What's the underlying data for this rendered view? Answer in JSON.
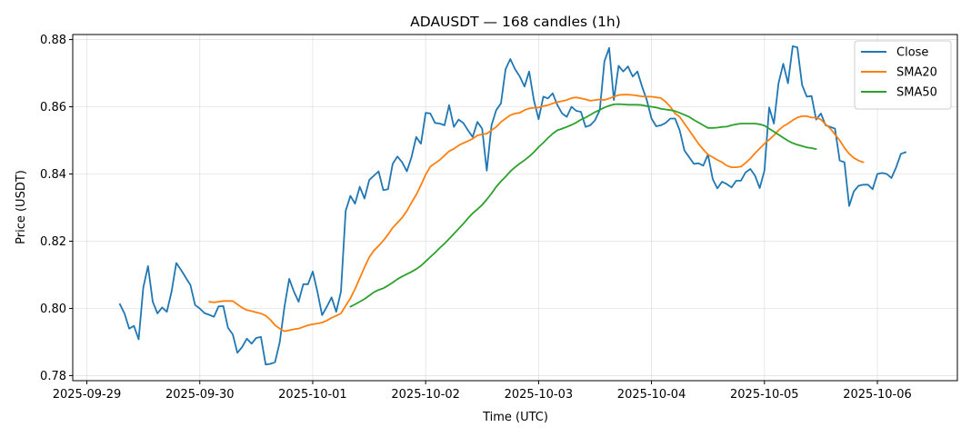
{
  "chart_data": {
    "type": "line",
    "title": "ADAUSDT — 168 candles (1h)",
    "xlabel": "Time (UTC)",
    "ylabel": "Price (USDT)",
    "x_start": "2025-09-29 07:00",
    "x_step": "1h",
    "xlim": [
      "2025-09-28 21:00",
      "2025-10-06 17:00"
    ],
    "ylim": [
      0.7785,
      0.8815
    ],
    "x_ticks": [
      "2025-09-29",
      "2025-09-30",
      "2025-10-01",
      "2025-10-02",
      "2025-10-03",
      "2025-10-04",
      "2025-10-05",
      "2025-10-06"
    ],
    "y_ticks": [
      "0.78",
      "0.80",
      "0.82",
      "0.84",
      "0.86",
      "0.88"
    ],
    "grid": true,
    "legend_position": "top-right",
    "series": [
      {
        "name": "Close",
        "color": "#1f77b4",
        "values": [
          0.8013,
          0.7985,
          0.794,
          0.7948,
          0.7908,
          0.8062,
          0.8126,
          0.802,
          0.7985,
          0.8003,
          0.799,
          0.805,
          0.8135,
          0.8115,
          0.8092,
          0.807,
          0.801,
          0.8,
          0.7986,
          0.7981,
          0.7975,
          0.8006,
          0.8007,
          0.7942,
          0.7923,
          0.7868,
          0.7885,
          0.791,
          0.7895,
          0.7912,
          0.7915,
          0.7833,
          0.7835,
          0.784,
          0.79,
          0.8005,
          0.8088,
          0.805,
          0.802,
          0.8072,
          0.8072,
          0.811,
          0.805,
          0.798,
          0.8005,
          0.8033,
          0.799,
          0.805,
          0.829,
          0.8335,
          0.8312,
          0.8362,
          0.8327,
          0.8382,
          0.8395,
          0.8408,
          0.8352,
          0.8355,
          0.843,
          0.8452,
          0.8435,
          0.8408,
          0.845,
          0.851,
          0.849,
          0.8582,
          0.858,
          0.8552,
          0.855,
          0.8545,
          0.8605,
          0.854,
          0.8562,
          0.8552,
          0.853,
          0.851,
          0.8555,
          0.8535,
          0.841,
          0.8545,
          0.859,
          0.861,
          0.8712,
          0.8742,
          0.8712,
          0.869,
          0.866,
          0.8705,
          0.862,
          0.8563,
          0.863,
          0.8625,
          0.864,
          0.8605,
          0.858,
          0.857,
          0.86,
          0.8588,
          0.8585,
          0.854,
          0.8545,
          0.856,
          0.859,
          0.8735,
          0.8775,
          0.862,
          0.8722,
          0.8705,
          0.872,
          0.869,
          0.8705,
          0.866,
          0.862,
          0.8565,
          0.8542,
          0.8545,
          0.8552,
          0.8565,
          0.8565,
          0.853,
          0.847,
          0.845,
          0.843,
          0.8432,
          0.8425,
          0.8458,
          0.8385,
          0.8357,
          0.8377,
          0.837,
          0.836,
          0.838,
          0.838,
          0.8405,
          0.8415,
          0.8395,
          0.8358,
          0.841,
          0.8598,
          0.855,
          0.867,
          0.8728,
          0.867,
          0.878,
          0.8777,
          0.8665,
          0.863,
          0.8632,
          0.8562,
          0.858,
          0.8545,
          0.854,
          0.8535,
          0.844,
          0.8435,
          0.8305,
          0.8348,
          0.8365,
          0.8368,
          0.8368,
          0.8355,
          0.84,
          0.8403,
          0.84,
          0.8388,
          0.842,
          0.846,
          0.8465
        ]
      },
      {
        "name": "SMA20",
        "color": "#ff7f0e",
        "start_index": 19,
        "values": [
          0.802,
          0.8018,
          0.802,
          0.8022,
          0.8022,
          0.8022,
          0.8012,
          0.8002,
          0.7995,
          0.7992,
          0.7988,
          0.7985,
          0.7978,
          0.7966,
          0.795,
          0.794,
          0.7932,
          0.7935,
          0.7938,
          0.794,
          0.7945,
          0.795,
          0.7953,
          0.7955,
          0.7958,
          0.7964,
          0.7972,
          0.7978,
          0.7985,
          0.8008,
          0.803,
          0.8058,
          0.809,
          0.8122,
          0.8152,
          0.8172,
          0.8186,
          0.8202,
          0.822,
          0.824,
          0.8255,
          0.827,
          0.829,
          0.8315,
          0.8338,
          0.8367,
          0.8398,
          0.8422,
          0.8432,
          0.8442,
          0.8455,
          0.8468,
          0.8475,
          0.8485,
          0.8492,
          0.8498,
          0.8505,
          0.8515,
          0.8518,
          0.852,
          0.853,
          0.854,
          0.8555,
          0.8565,
          0.8575,
          0.858,
          0.8582,
          0.859,
          0.8595,
          0.8597,
          0.8598,
          0.8602,
          0.8605,
          0.861,
          0.8614,
          0.8617,
          0.862,
          0.8626,
          0.8628,
          0.8625,
          0.8622,
          0.8618,
          0.862,
          0.8622,
          0.862,
          0.8625,
          0.863,
          0.8635,
          0.8636,
          0.8636,
          0.8635,
          0.8633,
          0.8631,
          0.863,
          0.863,
          0.8628,
          0.8626,
          0.8615,
          0.86,
          0.858,
          0.857,
          0.855,
          0.853,
          0.851,
          0.849,
          0.8473,
          0.8458,
          0.845,
          0.8442,
          0.8435,
          0.8425,
          0.842,
          0.842,
          0.8422,
          0.8433,
          0.8446,
          0.8462,
          0.8476,
          0.849,
          0.8502,
          0.8515,
          0.853,
          0.8542,
          0.855,
          0.856,
          0.8568,
          0.8572,
          0.8572,
          0.8568,
          0.8568,
          0.8562,
          0.8548,
          0.8535,
          0.8518,
          0.85,
          0.8478,
          0.846,
          0.8448,
          0.844,
          0.8435
        ]
      },
      {
        "name": "SMA50",
        "color": "#2ca02c",
        "start_index": 49,
        "values": [
          0.8005,
          0.8012,
          0.802,
          0.8028,
          0.8038,
          0.8048,
          0.8055,
          0.806,
          0.8068,
          0.8077,
          0.8087,
          0.8095,
          0.8102,
          0.8109,
          0.8117,
          0.8127,
          0.814,
          0.8153,
          0.8166,
          0.818,
          0.8193,
          0.8207,
          0.8222,
          0.8237,
          0.8252,
          0.8268,
          0.8283,
          0.8295,
          0.8308,
          0.8324,
          0.8342,
          0.8362,
          0.8378,
          0.8392,
          0.8408,
          0.842,
          0.8431,
          0.8441,
          0.8452,
          0.8465,
          0.848,
          0.8493,
          0.8507,
          0.852,
          0.853,
          0.8535,
          0.854,
          0.8546,
          0.8553,
          0.8562,
          0.8568,
          0.8576,
          0.8584,
          0.8591,
          0.8598,
          0.8603,
          0.8607,
          0.8608,
          0.8607,
          0.8606,
          0.8606,
          0.8606,
          0.8605,
          0.8602,
          0.86,
          0.8598,
          0.8594,
          0.8592,
          0.859,
          0.8587,
          0.8582,
          0.8576,
          0.857,
          0.8561,
          0.8553,
          0.8545,
          0.8537,
          0.8537,
          0.8538,
          0.854,
          0.8541,
          0.8545,
          0.8548,
          0.855,
          0.855,
          0.855,
          0.855,
          0.8548,
          0.8544,
          0.8535,
          0.8526,
          0.8517,
          0.8508,
          0.8499,
          0.8492,
          0.8487,
          0.8483,
          0.8479,
          0.8477,
          0.8474
        ]
      }
    ]
  }
}
